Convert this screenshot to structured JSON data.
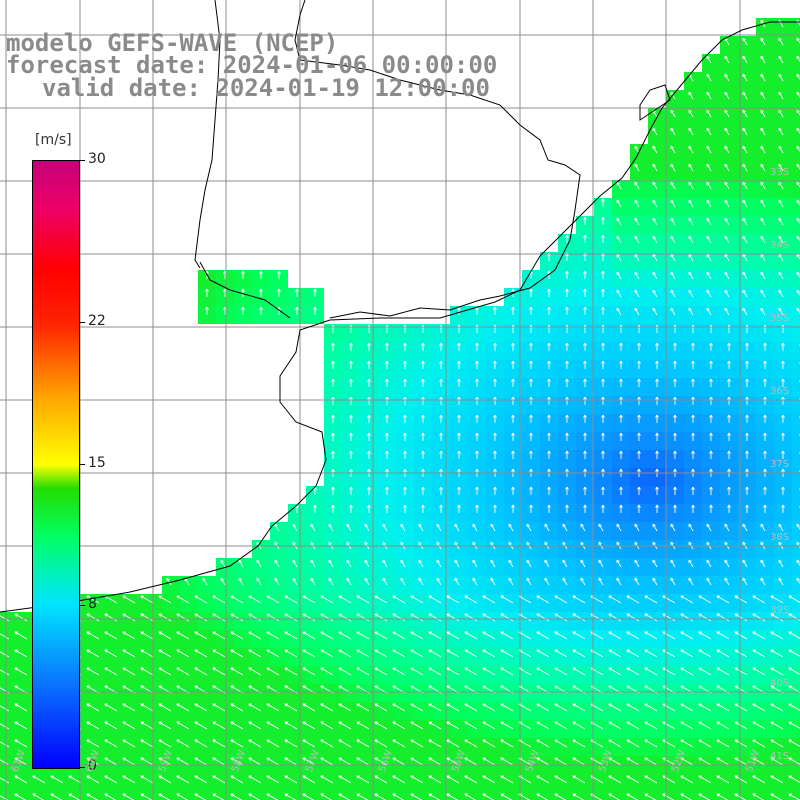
{
  "title": {
    "model": "modelo GEFS-WAVE (NCEP)",
    "forecast": "forecast date: 2024-01-06 00:00:00",
    "valid": "valid date: 2024-01-19 12:00:00"
  },
  "colorbar": {
    "unit": "[m/s]",
    "ticks": [
      "30",
      "22",
      "15",
      "8",
      "0"
    ],
    "tick_values": [
      30,
      22,
      15,
      8,
      0
    ],
    "range": [
      0,
      30
    ]
  },
  "map": {
    "lat_labels": [
      "33S",
      "34S",
      "35S",
      "36S",
      "37S",
      "38S",
      "39S",
      "40S",
      "41S"
    ],
    "lon_labels": [
      "61W",
      "60W",
      "59W",
      "58W",
      "57W",
      "56W",
      "55W",
      "54W",
      "53W",
      "52W",
      "51W"
    ],
    "colors": {
      "land": "#ffffff",
      "grid": "#8c8c8c",
      "coast": "#000000",
      "arrow": "#ffffff"
    },
    "field": "wind speed with direction arrows"
  }
}
